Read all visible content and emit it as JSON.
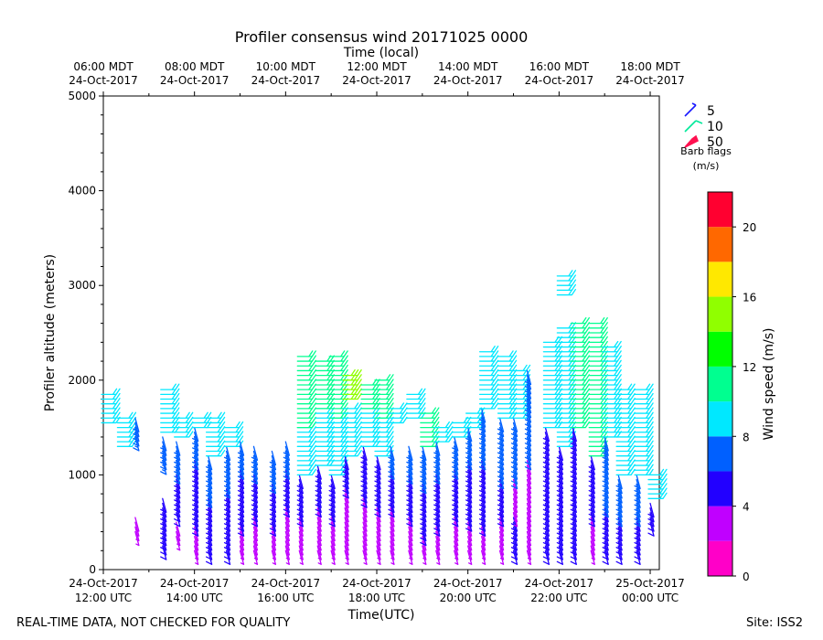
{
  "chart_data": {
    "type": "wind_barb",
    "title": "Profiler consensus wind 20171025 0000",
    "top_axis_title": "Time (local)",
    "xlabel": "Time(UTC)",
    "ylabel": "Profiler altitude (meters)",
    "ylim": [
      0,
      5000
    ],
    "y_ticks": [
      0,
      1000,
      2000,
      3000,
      4000,
      5000
    ],
    "xlim_hours_utc": [
      12.0,
      24.2
    ],
    "x_ticks_utc": [
      {
        "hour": 12,
        "line1": "24-Oct-2017",
        "line2": "12:00 UTC"
      },
      {
        "hour": 14,
        "line1": "24-Oct-2017",
        "line2": "14:00 UTC"
      },
      {
        "hour": 16,
        "line1": "24-Oct-2017",
        "line2": "16:00 UTC"
      },
      {
        "hour": 18,
        "line1": "24-Oct-2017",
        "line2": "18:00 UTC"
      },
      {
        "hour": 20,
        "line1": "24-Oct-2017",
        "line2": "20:00 UTC"
      },
      {
        "hour": 22,
        "line1": "24-Oct-2017",
        "line2": "22:00 UTC"
      },
      {
        "hour": 24,
        "line1": "25-Oct-2017",
        "line2": "00:00 UTC"
      }
    ],
    "x_ticks_local": [
      {
        "hour": 12,
        "line1": "06:00 MDT",
        "line2": "24-Oct-2017"
      },
      {
        "hour": 14,
        "line1": "08:00 MDT",
        "line2": "24-Oct-2017"
      },
      {
        "hour": 16,
        "line1": "10:00 MDT",
        "line2": "24-Oct-2017"
      },
      {
        "hour": 18,
        "line1": "12:00 MDT",
        "line2": "24-Oct-2017"
      },
      {
        "hour": 20,
        "line1": "14:00 MDT",
        "line2": "24-Oct-2017"
      },
      {
        "hour": 22,
        "line1": "16:00 MDT",
        "line2": "24-Oct-2017"
      },
      {
        "hour": 24,
        "line1": "18:00 MDT",
        "line2": "24-Oct-2017"
      }
    ],
    "barb_legend": {
      "title_line1": "Barb flags",
      "title_line2": "(m/s)",
      "entries": [
        {
          "label": "5",
          "color": "#1a1aff"
        },
        {
          "label": "10",
          "color": "#00e89a"
        },
        {
          "label": "50",
          "color": "#ff1050"
        }
      ]
    },
    "colorbar": {
      "label": "Wind speed (m/s)",
      "min": 0,
      "max": 22,
      "step": 2,
      "ticks": [
        0,
        4,
        8,
        12,
        16,
        20
      ],
      "colors": [
        "#ff00c8",
        "#c000ff",
        "#2200ff",
        "#0060ff",
        "#00e8ff",
        "#00ff90",
        "#00ff00",
        "#90ff00",
        "#ffe800",
        "#ff6800",
        "#ff0030"
      ]
    },
    "column_times_utc": [
      12.0,
      12.35,
      12.7,
      13.3,
      13.6,
      14.0,
      14.3,
      14.7,
      15.0,
      15.3,
      15.7,
      16.0,
      16.3,
      16.7,
      17.0,
      17.3,
      17.7,
      18.0,
      18.3,
      18.7,
      19.0,
      19.3,
      19.7,
      20.0,
      20.3,
      20.7,
      21.0,
      21.3,
      21.7,
      22.0,
      22.3,
      22.7,
      23.0,
      23.3,
      23.7,
      24.0
    ],
    "profiles": [
      {
        "t": 12.0,
        "bands": [
          {
            "b": 1530,
            "e": 1880,
            "s": 9
          }
        ]
      },
      {
        "t": 12.35,
        "bands": [
          {
            "b": 1300,
            "e": 1600,
            "s": 9
          }
        ]
      },
      {
        "t": 12.7,
        "bands": [
          {
            "b": 400,
            "e": 560,
            "s": 3
          },
          {
            "b": 1380,
            "e": 1600,
            "s": 7
          }
        ]
      },
      {
        "t": 13.3,
        "bands": [
          {
            "b": 250,
            "e": 750,
            "s": 5
          },
          {
            "b": 1150,
            "e": 1400,
            "s": 7
          },
          {
            "b": 1450,
            "e": 1900,
            "s": 9
          }
        ]
      },
      {
        "t": 13.6,
        "bands": [
          {
            "b": 350,
            "e": 500,
            "s": 3
          },
          {
            "b": 600,
            "e": 1000,
            "s": 5
          },
          {
            "b": 1050,
            "e": 1350,
            "s": 7
          },
          {
            "b": 1380,
            "e": 1600,
            "s": 9
          }
        ]
      },
      {
        "t": 14.0,
        "bands": [
          {
            "b": 200,
            "e": 500,
            "s": 3
          },
          {
            "b": 500,
            "e": 1200,
            "s": 5
          },
          {
            "b": 1200,
            "e": 1500,
            "s": 7
          },
          {
            "b": 1500,
            "e": 1600,
            "s": 9
          }
        ]
      },
      {
        "t": 14.3,
        "bands": [
          {
            "b": 200,
            "e": 800,
            "s": 5
          },
          {
            "b": 800,
            "e": 1200,
            "s": 7
          },
          {
            "b": 1200,
            "e": 1620,
            "s": 9
          }
        ]
      },
      {
        "t": 14.7,
        "bands": [
          {
            "b": 200,
            "e": 900,
            "s": 5
          },
          {
            "b": 900,
            "e": 1300,
            "s": 7
          },
          {
            "b": 1300,
            "e": 1500,
            "s": 9
          }
        ]
      },
      {
        "t": 15.0,
        "bands": [
          {
            "b": 200,
            "e": 500,
            "s": 3
          },
          {
            "b": 500,
            "e": 1100,
            "s": 5
          },
          {
            "b": 1100,
            "e": 1350,
            "s": 7
          }
        ]
      },
      {
        "t": 15.3,
        "bands": [
          {
            "b": 200,
            "e": 600,
            "s": 3
          },
          {
            "b": 600,
            "e": 1050,
            "s": 5
          },
          {
            "b": 1050,
            "e": 1300,
            "s": 7
          }
        ]
      },
      {
        "t": 15.7,
        "bands": [
          {
            "b": 200,
            "e": 500,
            "s": 3
          },
          {
            "b": 500,
            "e": 950,
            "s": 5
          },
          {
            "b": 950,
            "e": 1280,
            "s": 7
          }
        ]
      },
      {
        "t": 16.0,
        "bands": [
          {
            "b": 200,
            "e": 700,
            "s": 3
          },
          {
            "b": 700,
            "e": 1100,
            "s": 5
          },
          {
            "b": 1100,
            "e": 1380,
            "s": 7
          }
        ]
      },
      {
        "t": 16.3,
        "bands": [
          {
            "b": 200,
            "e": 600,
            "s": 3
          },
          {
            "b": 600,
            "e": 1000,
            "s": 5
          },
          {
            "b": 1000,
            "e": 1500,
            "s": 9
          },
          {
            "b": 1500,
            "e": 2250,
            "s": 11
          }
        ]
      },
      {
        "t": 16.7,
        "bands": [
          {
            "b": 200,
            "e": 700,
            "s": 3
          },
          {
            "b": 700,
            "e": 1100,
            "s": 5
          },
          {
            "b": 1100,
            "e": 1700,
            "s": 9
          },
          {
            "b": 1700,
            "e": 2200,
            "s": 11
          }
        ]
      },
      {
        "t": 17.0,
        "bands": [
          {
            "b": 200,
            "e": 600,
            "s": 3
          },
          {
            "b": 600,
            "e": 1000,
            "s": 5
          },
          {
            "b": 1000,
            "e": 1600,
            "s": 9
          },
          {
            "b": 1600,
            "e": 2250,
            "s": 11
          }
        ]
      },
      {
        "t": 17.3,
        "bands": [
          {
            "b": 200,
            "e": 900,
            "s": 3
          },
          {
            "b": 900,
            "e": 1200,
            "s": 5
          },
          {
            "b": 1200,
            "e": 1700,
            "s": 9
          },
          {
            "b": 1800,
            "e": 2050,
            "s": 15
          }
        ]
      },
      {
        "t": 17.7,
        "bands": [
          {
            "b": 200,
            "e": 800,
            "s": 3
          },
          {
            "b": 800,
            "e": 1300,
            "s": 5
          },
          {
            "b": 1300,
            "e": 1700,
            "s": 9
          },
          {
            "b": 1700,
            "e": 1950,
            "s": 11
          }
        ]
      },
      {
        "t": 18.0,
        "bands": [
          {
            "b": 200,
            "e": 700,
            "s": 3
          },
          {
            "b": 700,
            "e": 1200,
            "s": 5
          },
          {
            "b": 1200,
            "e": 1600,
            "s": 9
          },
          {
            "b": 1600,
            "e": 2000,
            "s": 11
          }
        ]
      },
      {
        "t": 18.3,
        "bands": [
          {
            "b": 200,
            "e": 700,
            "s": 3
          },
          {
            "b": 700,
            "e": 1100,
            "s": 5
          },
          {
            "b": 1100,
            "e": 1300,
            "s": 7
          },
          {
            "b": 1550,
            "e": 1700,
            "s": 9
          }
        ]
      },
      {
        "t": 18.7,
        "bands": [
          {
            "b": 200,
            "e": 600,
            "s": 3
          },
          {
            "b": 600,
            "e": 1050,
            "s": 5
          },
          {
            "b": 1050,
            "e": 1300,
            "s": 7
          },
          {
            "b": 1600,
            "e": 1880,
            "s": 9
          }
        ]
      },
      {
        "t": 19.0,
        "bands": [
          {
            "b": 200,
            "e": 400,
            "s": 3
          },
          {
            "b": 400,
            "e": 950,
            "s": 5
          },
          {
            "b": 950,
            "e": 1300,
            "s": 7
          },
          {
            "b": 1300,
            "e": 1650,
            "s": 10
          }
        ]
      },
      {
        "t": 19.3,
        "bands": [
          {
            "b": 200,
            "e": 500,
            "s": 3
          },
          {
            "b": 500,
            "e": 1050,
            "s": 5
          },
          {
            "b": 1050,
            "e": 1350,
            "s": 7
          },
          {
            "b": 1350,
            "e": 1500,
            "s": 9
          }
        ]
      },
      {
        "t": 19.7,
        "bands": [
          {
            "b": 200,
            "e": 600,
            "s": 3
          },
          {
            "b": 600,
            "e": 1100,
            "s": 5
          },
          {
            "b": 1100,
            "e": 1400,
            "s": 7
          },
          {
            "b": 1400,
            "e": 1580,
            "s": 9
          }
        ]
      },
      {
        "t": 20.0,
        "bands": [
          {
            "b": 200,
            "e": 550,
            "s": 3
          },
          {
            "b": 550,
            "e": 1200,
            "s": 5
          },
          {
            "b": 1200,
            "e": 1500,
            "s": 7
          },
          {
            "b": 1500,
            "e": 1680,
            "s": 9
          }
        ]
      },
      {
        "t": 20.3,
        "bands": [
          {
            "b": 200,
            "e": 500,
            "s": 3
          },
          {
            "b": 500,
            "e": 1200,
            "s": 5
          },
          {
            "b": 1200,
            "e": 1700,
            "s": 7
          },
          {
            "b": 1700,
            "e": 2300,
            "s": 9
          }
        ]
      },
      {
        "t": 20.7,
        "bands": [
          {
            "b": 200,
            "e": 600,
            "s": 3
          },
          {
            "b": 600,
            "e": 1000,
            "s": 5
          },
          {
            "b": 1000,
            "e": 1600,
            "s": 6
          },
          {
            "b": 1600,
            "e": 2250,
            "s": 9
          }
        ]
      },
      {
        "t": 21.0,
        "bands": [
          {
            "b": 200,
            "e": 600,
            "s": 5
          },
          {
            "b": 600,
            "e": 1000,
            "s": 3
          },
          {
            "b": 1000,
            "e": 1600,
            "s": 6
          },
          {
            "b": 1600,
            "e": 2120,
            "s": 9
          }
        ]
      },
      {
        "t": 21.3,
        "bands": [
          {
            "b": 200,
            "e": 600,
            "s": 3
          },
          {
            "b": 600,
            "e": 1200,
            "s": 3
          },
          {
            "b": 1200,
            "e": 1800,
            "s": 6
          },
          {
            "b": 1800,
            "e": 2120,
            "s": 7
          }
        ]
      },
      {
        "t": 21.7,
        "bands": [
          {
            "b": 200,
            "e": 800,
            "s": 5
          },
          {
            "b": 800,
            "e": 1500,
            "s": 5
          },
          {
            "b": 1500,
            "e": 2420,
            "s": 9
          }
        ]
      },
      {
        "t": 22.0,
        "bands": [
          {
            "b": 200,
            "e": 800,
            "s": 5
          },
          {
            "b": 800,
            "e": 1300,
            "s": 5
          },
          {
            "b": 1300,
            "e": 2550,
            "s": 9
          },
          {
            "b": 2900,
            "e": 3120,
            "s": 9
          }
        ]
      },
      {
        "t": 22.3,
        "bands": [
          {
            "b": 200,
            "e": 800,
            "s": 5
          },
          {
            "b": 800,
            "e": 1500,
            "s": 5
          },
          {
            "b": 1500,
            "e": 2600,
            "s": 11
          }
        ]
      },
      {
        "t": 22.7,
        "bands": [
          {
            "b": 200,
            "e": 600,
            "s": 3
          },
          {
            "b": 600,
            "e": 1200,
            "s": 5
          },
          {
            "b": 1200,
            "e": 2600,
            "s": 11
          }
        ]
      },
      {
        "t": 23.0,
        "bands": [
          {
            "b": 200,
            "e": 700,
            "s": 5
          },
          {
            "b": 700,
            "e": 1400,
            "s": 7
          },
          {
            "b": 1400,
            "e": 2350,
            "s": 9
          }
        ]
      },
      {
        "t": 23.3,
        "bands": [
          {
            "b": 200,
            "e": 600,
            "s": 5
          },
          {
            "b": 600,
            "e": 1000,
            "s": 7
          },
          {
            "b": 1000,
            "e": 1900,
            "s": 9
          }
        ]
      },
      {
        "t": 23.7,
        "bands": [
          {
            "b": 200,
            "e": 600,
            "s": 5
          },
          {
            "b": 600,
            "e": 1000,
            "s": 7
          },
          {
            "b": 1000,
            "e": 1900,
            "s": 9
          }
        ]
      },
      {
        "t": 24.0,
        "bands": [
          {
            "b": 500,
            "e": 700,
            "s": 5
          },
          {
            "b": 750,
            "e": 1000,
            "s": 9
          }
        ]
      }
    ]
  },
  "footer": {
    "left_note": "REAL-TIME DATA, NOT CHECKED FOR QUALITY",
    "site": "Site: ISS2"
  }
}
